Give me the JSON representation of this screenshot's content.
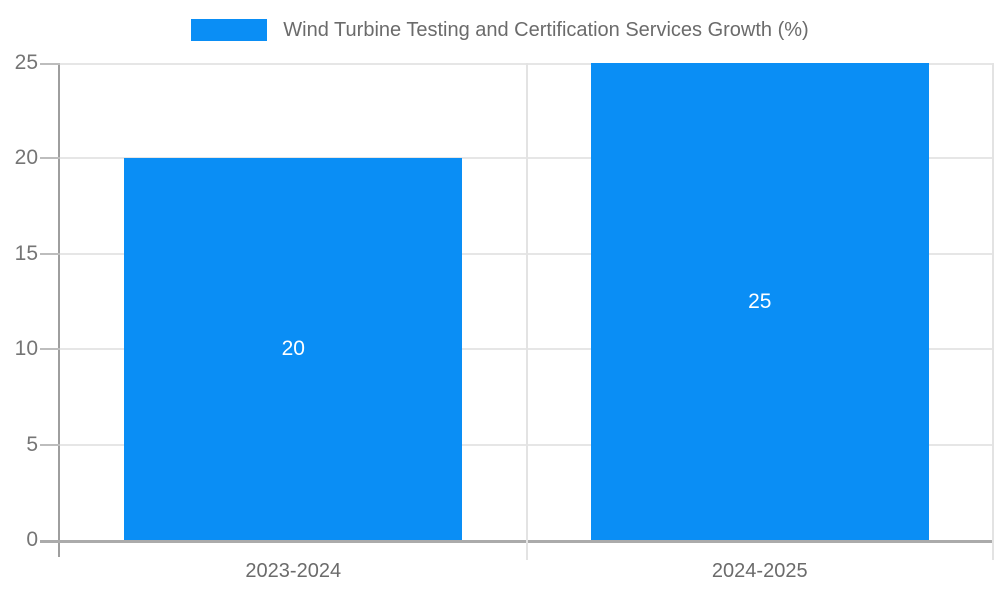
{
  "chart_data": {
    "type": "bar",
    "title": "Wind Turbine Testing and Certification Services Growth (%)",
    "categories": [
      "2023-2024",
      "2024-2025"
    ],
    "values": [
      20,
      25
    ],
    "xlabel": "",
    "ylabel": "",
    "ylim": [
      0,
      25
    ],
    "yticks": [
      0,
      5,
      10,
      15,
      20,
      25
    ],
    "grid": true,
    "legend_position": "top-center",
    "colors": {
      "bar": "#0a8ef5",
      "bar_value_label": "#ffffff",
      "y_tick_label": "#757575",
      "category_label": "#6b6b6b",
      "legend_text": "#6b6b6b",
      "gridline": "#e6e6e6",
      "axis_line": "#9e9e9e",
      "baseline": "#ababab"
    }
  }
}
